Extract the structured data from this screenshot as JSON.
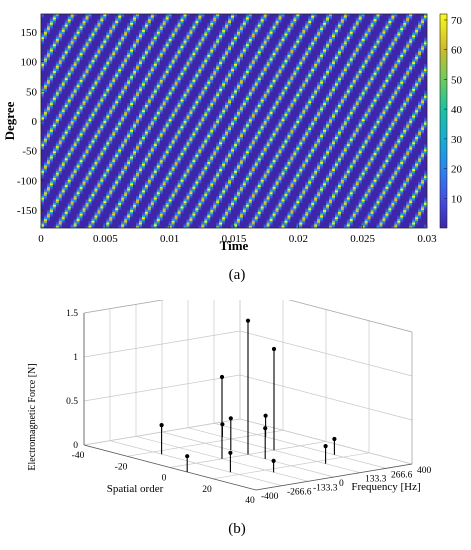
{
  "panels": {
    "a_label": "(a)",
    "b_label": "(b)"
  },
  "chart_data": [
    {
      "panel": "(a)",
      "type": "heatmap",
      "xlabel": "Time",
      "ylabel": "Degree",
      "xlim": [
        0,
        0.03
      ],
      "ylim": [
        -180,
        180
      ],
      "x_ticks": [
        "0",
        "0.005",
        "0.01",
        "0.015",
        "0.02",
        "0.025",
        "0.03"
      ],
      "x_tick_values": [
        0,
        0.005,
        0.01,
        0.015,
        0.02,
        0.025,
        0.03
      ],
      "y_ticks": [
        "150",
        "100",
        "50",
        "0",
        "-50",
        "-100",
        "-150"
      ],
      "y_tick_values": [
        150,
        100,
        50,
        0,
        -50,
        -100,
        -150
      ],
      "colorbar_ticks": [
        "70",
        "60",
        "50",
        "40",
        "30",
        "20",
        "10"
      ],
      "colorbar_tick_values": [
        70,
        60,
        50,
        40,
        30,
        20,
        10
      ],
      "clim": [
        0,
        72
      ],
      "colormap": "parula",
      "pattern": {
        "num_diagonal_waves": 8,
        "stripes_per_wave": 4,
        "degrees_per_period_of_time": 1440
      }
    },
    {
      "panel": "(b)",
      "type": "stem3d",
      "xlabel": "Spatial order",
      "ylabel": "Frequency [Hz]",
      "zlabel": "Electromagnetic Force [N]",
      "x_ticks": [
        "-40",
        "-20",
        "0",
        "20",
        "40"
      ],
      "y_ticks": [
        "-400",
        "-266.6",
        "-133.3",
        "0",
        "133.3",
        "266.6",
        "400"
      ],
      "z_ticks": [
        "0",
        "0.5",
        "1",
        "1.5"
      ],
      "xlim": [
        -40,
        40
      ],
      "ylim": [
        -400,
        400
      ],
      "zlim": [
        0,
        1.5
      ],
      "points": [
        {
          "order": 0,
          "freq": 0,
          "force": 1.52
        },
        {
          "order": 0,
          "freq": 133.3,
          "force": 1.15
        },
        {
          "order": 0,
          "freq": -133.3,
          "force": 0.93
        },
        {
          "order": 8,
          "freq": 0,
          "force": 0.35
        },
        {
          "order": -8,
          "freq": 0,
          "force": 0.36
        },
        {
          "order": 16,
          "freq": 266.6,
          "force": 0.18
        },
        {
          "order": 16,
          "freq": -266.6,
          "force": 0.22
        },
        {
          "order": -16,
          "freq": -266.6,
          "force": 0.33
        },
        {
          "order": -16,
          "freq": 266.6,
          "force": 0.24
        },
        {
          "order": 24,
          "freq": -133.3,
          "force": 0.13
        },
        {
          "order": 24,
          "freq": 133.3,
          "force": 0.2
        },
        {
          "order": -24,
          "freq": 133.3,
          "force": 0.14
        },
        {
          "order": 8,
          "freq": -400,
          "force": 0.18
        }
      ]
    }
  ]
}
